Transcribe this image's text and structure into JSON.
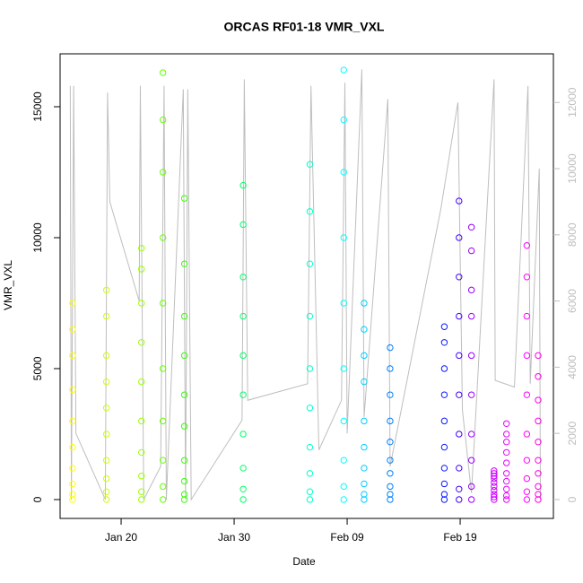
{
  "chart_data": {
    "type": "scatter",
    "title": "ORCAS RF01-18 VMR_VXL",
    "x_label": "Date",
    "y_label": "VMR_VXL",
    "xlim": [
      14.6,
      58.25
    ],
    "xticks": [
      {
        "value": 20,
        "label": "Jan 20"
      },
      {
        "value": 30,
        "label": "Jan 30"
      },
      {
        "value": 40,
        "label": "Feb 09"
      },
      {
        "value": 50,
        "label": "Feb 19"
      }
    ],
    "ylim": [
      -720,
      17020
    ],
    "yticks": [
      0,
      5000,
      10000,
      15000
    ],
    "y2lim": [
      -570,
      13470
    ],
    "y2ticks": [
      0,
      2000,
      4000,
      6000,
      8000,
      10000,
      12000
    ],
    "y2_color": "#bebebe",
    "series": [
      {
        "color": "#ffff00",
        "x": [
          15.7,
          15.7,
          15.7,
          15.7,
          15.7,
          15.7,
          15.7,
          15.7,
          15.7,
          15.7
        ],
        "values": [
          0,
          200,
          600,
          1200,
          2000,
          3000,
          4200,
          5500,
          6500,
          7500
        ]
      },
      {
        "color": "#ccff00",
        "x": [
          18.7,
          18.7,
          18.7,
          18.7,
          18.7,
          18.7,
          18.7,
          18.7,
          18.7,
          18.7
        ],
        "values": [
          0,
          300,
          800,
          1500,
          2500,
          3500,
          4500,
          5500,
          7000,
          8000
        ]
      },
      {
        "color": "#99ff00",
        "x": [
          21.8,
          21.8,
          21.8,
          21.8,
          21.8,
          21.8,
          21.8,
          21.8,
          21.8,
          21.8
        ],
        "values": [
          0,
          300,
          900,
          1800,
          3000,
          4500,
          6000,
          7500,
          8800,
          9600
        ]
      },
      {
        "color": "#66ff00",
        "x": [
          23.7,
          23.7,
          23.7,
          23.7,
          23.7,
          23.7,
          23.7,
          23.7,
          23.7,
          23.7
        ],
        "values": [
          0,
          500,
          1500,
          3000,
          5000,
          7500,
          10000,
          12500,
          14500,
          16300
        ]
      },
      {
        "color": "#33ff00",
        "x": [
          25.6,
          25.6,
          25.6,
          25.6,
          25.6,
          25.6,
          25.6,
          25.6,
          25.6,
          25.6
        ],
        "values": [
          0,
          200,
          700,
          1500,
          2800,
          4000,
          5500,
          7000,
          9000,
          11500
        ]
      },
      {
        "color": "#00ff66",
        "x": [
          30.8,
          30.8,
          30.8,
          30.8,
          30.8,
          30.8,
          30.8,
          30.8,
          30.8,
          30.8
        ],
        "values": [
          0,
          400,
          1200,
          2500,
          4000,
          5500,
          7000,
          8500,
          10500,
          12000
        ]
      },
      {
        "color": "#00ffcc",
        "x": [
          36.7,
          36.7,
          36.7,
          36.7,
          36.7,
          36.7,
          36.7,
          36.7,
          36.7,
          36.7
        ],
        "values": [
          0,
          300,
          1000,
          2000,
          3500,
          5000,
          7000,
          9000,
          11000,
          12800
        ]
      },
      {
        "color": "#00ffff",
        "x": [
          39.7,
          39.7,
          39.7,
          39.7,
          39.7,
          39.7,
          39.7,
          39.7,
          39.7,
          39.7
        ],
        "values": [
          0,
          500,
          1500,
          3000,
          5000,
          7500,
          10000,
          12500,
          14500,
          16400
        ]
      },
      {
        "color": "#00ccff",
        "x": [
          41.5,
          41.5,
          41.5,
          41.5,
          41.5,
          41.5,
          41.5,
          41.5,
          41.5,
          41.5
        ],
        "values": [
          0,
          200,
          600,
          1200,
          2000,
          3000,
          4500,
          5500,
          6500,
          7500
        ]
      },
      {
        "color": "#0080ff",
        "x": [
          43.8,
          43.8,
          43.8,
          43.8,
          43.8,
          43.8,
          43.8,
          43.8,
          43.8,
          43.8
        ],
        "values": [
          0,
          200,
          500,
          1000,
          1500,
          2200,
          3000,
          4000,
          5000,
          5800
        ]
      },
      {
        "color": "#0a1aff",
        "x": [
          48.6,
          48.6,
          48.6,
          48.6,
          48.6,
          48.6,
          48.6,
          48.6,
          48.6,
          48.6
        ],
        "values": [
          0,
          200,
          600,
          1200,
          2000,
          3000,
          4000,
          5000,
          6000,
          6600
        ]
      },
      {
        "color": "#4400ff",
        "x": [
          49.9,
          49.9,
          49.9,
          49.9,
          49.9,
          49.9,
          49.9,
          49.9,
          49.9,
          49.9
        ],
        "values": [
          0,
          400,
          1200,
          2500,
          4000,
          5500,
          7000,
          8500,
          10000,
          11400
        ]
      },
      {
        "color": "#9900ff",
        "x": [
          51.0,
          51.0,
          51.0,
          51.0,
          51.0,
          51.0,
          51.0,
          51.0,
          51.0,
          51.0
        ],
        "values": [
          0,
          500,
          1500,
          2500,
          4000,
          5500,
          7000,
          8000,
          9500,
          10400
        ]
      },
      {
        "color": "#cc00ff",
        "x": [
          53.0,
          53.0,
          53.0,
          53.0,
          53.0,
          53.0,
          53.0,
          53.0,
          53.0,
          53.0
        ],
        "values": [
          0,
          100,
          200,
          350,
          500,
          650,
          800,
          900,
          1000,
          1100
        ]
      },
      {
        "color": "#e600ff",
        "x": [
          54.1,
          54.1,
          54.1,
          54.1,
          54.1,
          54.1,
          54.1,
          54.1,
          54.1,
          54.1
        ],
        "values": [
          0,
          150,
          400,
          700,
          1000,
          1400,
          1800,
          2200,
          2500,
          2900
        ]
      },
      {
        "color": "#ff00ff",
        "x": [
          55.9,
          55.9,
          55.9,
          55.9,
          55.9,
          55.9,
          55.9,
          55.9,
          55.9,
          55.9
        ],
        "values": [
          0,
          300,
          800,
          1500,
          2500,
          4000,
          5500,
          7000,
          8500,
          9700
        ]
      },
      {
        "color": "#ff00e6",
        "x": [
          56.9,
          56.9,
          56.9,
          56.9,
          56.9,
          56.9,
          56.9,
          56.9,
          56.9,
          56.9
        ],
        "values": [
          0,
          200,
          500,
          1000,
          1500,
          2200,
          3000,
          3800,
          4700,
          5500
        ]
      },
      {
        "type": "line",
        "axis": "y2",
        "color": "#bebebe",
        "x": [
          15.5,
          15.6,
          15.8,
          16.0,
          18.6,
          18.8,
          19.0,
          21.6,
          21.7,
          22.0,
          23.5,
          23.8,
          24.0,
          25.5,
          25.7,
          25.9,
          26.2,
          30.7,
          30.9,
          31.2,
          36.5,
          36.8,
          37.5,
          39.5,
          39.8,
          40.0,
          41.3,
          41.5,
          43.6,
          43.8,
          48.3,
          49.8,
          50.2,
          51.0,
          53.0,
          53.1,
          54.8,
          56.0,
          56.2,
          57.0,
          57.1
        ],
        "values": [
          12500,
          0,
          12500,
          2000,
          0,
          12300,
          9000,
          6000,
          12500,
          0,
          1000,
          12500,
          0,
          12400,
          0,
          12400,
          0,
          2400,
          12700,
          3000,
          3500,
          12500,
          1500,
          3000,
          12600,
          2000,
          13000,
          2500,
          12100,
          1000,
          8800,
          12000,
          2700,
          200,
          12700,
          3600,
          3400,
          12500,
          3500,
          10000,
          0
        ]
      }
    ]
  }
}
